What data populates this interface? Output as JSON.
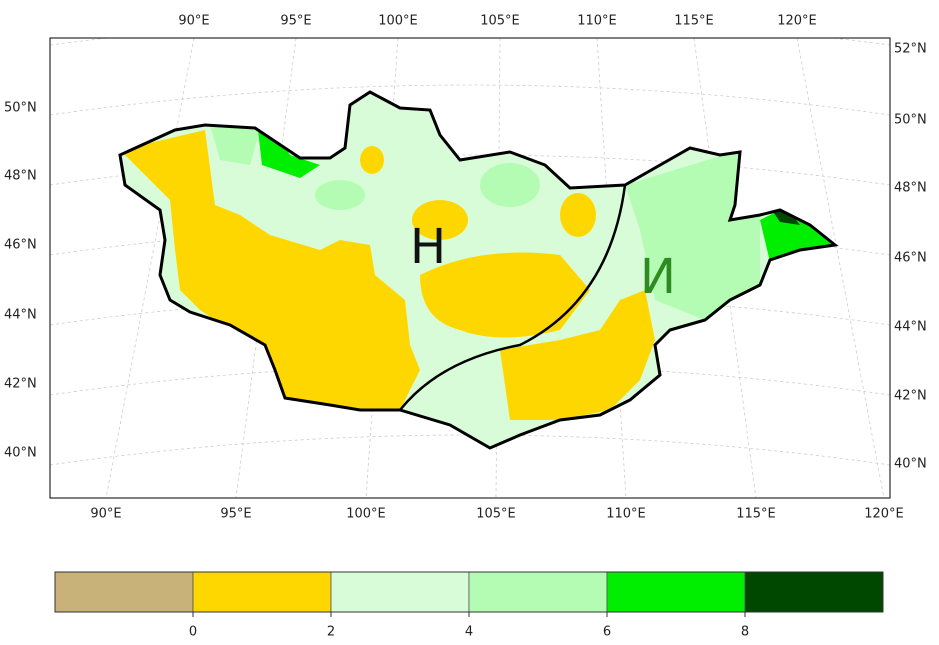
{
  "map": {
    "top_labels": [
      "90°E",
      "95°E",
      "100°E",
      "105°E",
      "110°E",
      "115°E",
      "120°E"
    ],
    "bottom_labels": [
      "90°E",
      "95°E",
      "100°E",
      "105°E",
      "110°E",
      "115°E",
      "120°E"
    ],
    "left_labels": [
      "50°N",
      "48°N",
      "46°N",
      "44°N",
      "42°N",
      "40°N"
    ],
    "right_labels": [
      "52°N",
      "50°N",
      "48°N",
      "46°N",
      "44°N",
      "42°N",
      "40°N"
    ],
    "region_labels": [
      {
        "text": "Н",
        "color": "#111111"
      },
      {
        "text": "И",
        "color": "#2e8b22"
      }
    ]
  },
  "colorbar": {
    "colors": [
      "#c8b27a",
      "#ffd700",
      "#d8fcd8",
      "#b4fcb4",
      "#00ee00",
      "#004800"
    ],
    "range": [
      -2,
      10
    ],
    "ticks": [
      0,
      2,
      4,
      6,
      8
    ]
  }
}
